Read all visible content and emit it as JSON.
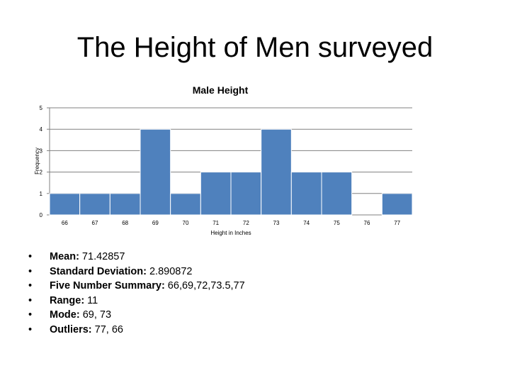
{
  "slide": {
    "title": "The Height of Men surveyed"
  },
  "chart_data": {
    "type": "bar",
    "title": "Male Height",
    "xlabel": "Height in Inches",
    "ylabel": "Frequency",
    "categories": [
      "66",
      "67",
      "68",
      "69",
      "70",
      "71",
      "72",
      "73",
      "74",
      "75",
      "76",
      "77"
    ],
    "values": [
      1,
      1,
      1,
      4,
      1,
      2,
      2,
      4,
      2,
      2,
      0,
      1
    ],
    "ylim": [
      0,
      5
    ],
    "yticks": [
      "0",
      "1",
      "2",
      "3",
      "4",
      "5"
    ],
    "grid": true,
    "bar_color": "#4f81bd"
  },
  "summary": {
    "bullet_glyph": "•",
    "items": [
      {
        "label": "Mean:",
        "value": " 71.42857"
      },
      {
        "label": "Standard Deviation:",
        "value": " 2.890872"
      },
      {
        "label": "Five Number Summary:",
        "value": " 66,69,72,73.5,77"
      },
      {
        "label": "Range:",
        "value": " 11"
      },
      {
        "label": "Mode:",
        "value": " 69, 73"
      },
      {
        "label": "Outliers:",
        "value": " 77, 66"
      }
    ]
  }
}
